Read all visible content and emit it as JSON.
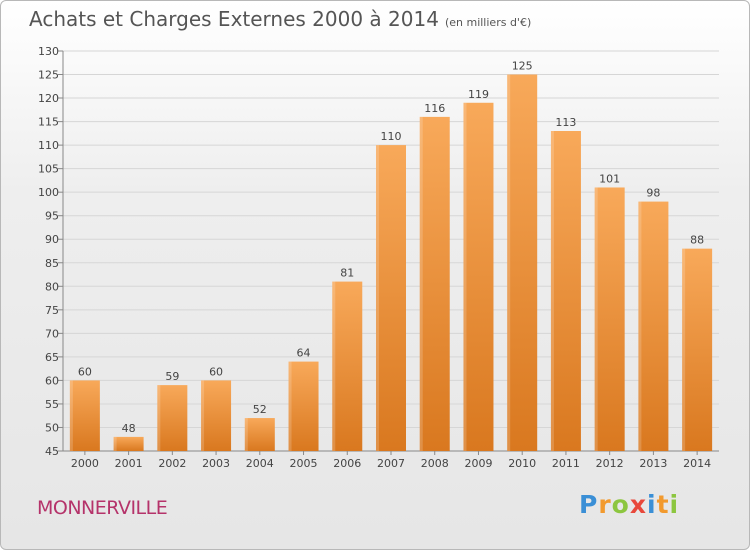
{
  "title": "Achats et Charges Externes 2000 à 2014",
  "subtitle": "(en milliers d'€)",
  "commune": "MONNERVILLE",
  "logo": {
    "letters": [
      "P",
      "r",
      "o",
      "x",
      "i",
      "t",
      "i"
    ],
    "colors": [
      "#3a8fd6",
      "#f29a2e",
      "#8cc63f",
      "#e8483b",
      "#3a8fd6",
      "#f29a2e",
      "#8cc63f"
    ]
  },
  "colors": {
    "bar_top": "#f8a95a",
    "bar_bottom": "#d9781f",
    "commune": "#b5336a"
  },
  "chart_data": {
    "type": "bar",
    "categories": [
      "2000",
      "2001",
      "2002",
      "2003",
      "2004",
      "2005",
      "2006",
      "2007",
      "2008",
      "2009",
      "2010",
      "2011",
      "2012",
      "2013",
      "2014"
    ],
    "values": [
      60,
      48,
      59,
      60,
      52,
      64,
      81,
      110,
      116,
      119,
      125,
      113,
      101,
      98,
      88
    ],
    "ylim": [
      45,
      130
    ],
    "yticks": [
      45,
      50,
      55,
      60,
      65,
      70,
      75,
      80,
      85,
      90,
      95,
      100,
      105,
      110,
      115,
      120,
      125,
      130
    ],
    "grid": true,
    "data_labels": true
  }
}
